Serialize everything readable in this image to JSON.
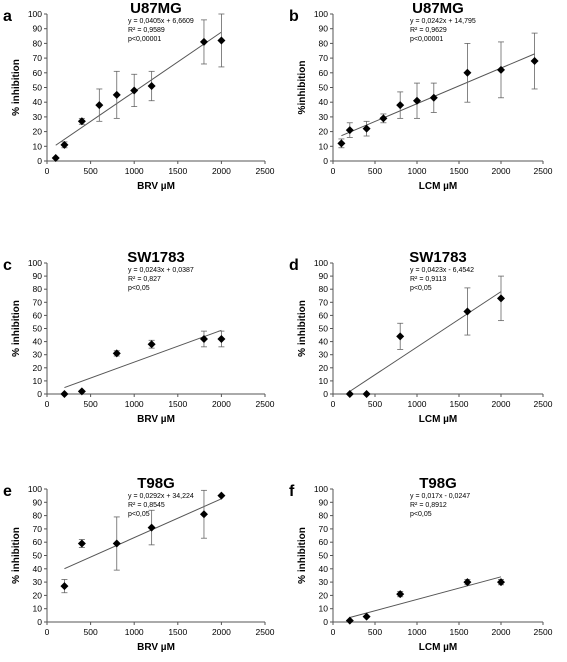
{
  "chart_data": [
    {
      "panel": "a",
      "type": "scatter",
      "title": "U87MG",
      "xlabel": "BRV µM",
      "ylabel": "% inhibition",
      "xlim": [
        0,
        2500
      ],
      "ylim": [
        0,
        100
      ],
      "xticks": [
        0,
        500,
        1000,
        1500,
        2000,
        2500
      ],
      "yticks": [
        0,
        10,
        20,
        30,
        40,
        50,
        60,
        70,
        80,
        90,
        100
      ],
      "annotations": [
        "y = 0,0405x + 6,6609",
        "R² = 0,9589",
        "p<0,00001"
      ],
      "points": [
        {
          "x": 100,
          "y": 2,
          "err": 0
        },
        {
          "x": 200,
          "y": 11,
          "err": 2
        },
        {
          "x": 400,
          "y": 27,
          "err": 2
        },
        {
          "x": 600,
          "y": 38,
          "err": 11
        },
        {
          "x": 800,
          "y": 45,
          "err": 16
        },
        {
          "x": 1000,
          "y": 48,
          "err": 11
        },
        {
          "x": 1200,
          "y": 51,
          "err": 10
        },
        {
          "x": 1800,
          "y": 81,
          "err": 15
        },
        {
          "x": 2000,
          "y": 82,
          "err": 18
        }
      ],
      "trendline": {
        "slope": 0.0405,
        "intercept": 6.6609,
        "x_from": 100,
        "x_to": 2000
      }
    },
    {
      "panel": "b",
      "type": "scatter",
      "title": "U87MG",
      "xlabel": "LCM µM",
      "ylabel": "%inhibition",
      "xlim": [
        0,
        2500
      ],
      "ylim": [
        0,
        100
      ],
      "xticks": [
        0,
        500,
        1000,
        1500,
        2000,
        2500
      ],
      "yticks": [
        0,
        10,
        20,
        30,
        40,
        50,
        60,
        70,
        80,
        90,
        100
      ],
      "annotations": [
        "y = 0,0242x + 14,795",
        "R² = 0,9629",
        "p<0,00001"
      ],
      "points": [
        {
          "x": 100,
          "y": 12,
          "err": 3
        },
        {
          "x": 200,
          "y": 21,
          "err": 5
        },
        {
          "x": 400,
          "y": 22,
          "err": 5
        },
        {
          "x": 600,
          "y": 29,
          "err": 3
        },
        {
          "x": 800,
          "y": 38,
          "err": 9
        },
        {
          "x": 1000,
          "y": 41,
          "err": 12
        },
        {
          "x": 1200,
          "y": 43,
          "err": 10
        },
        {
          "x": 1600,
          "y": 60,
          "err": 20
        },
        {
          "x": 2000,
          "y": 62,
          "err": 19
        },
        {
          "x": 2400,
          "y": 68,
          "err": 19
        }
      ],
      "trendline": {
        "slope": 0.0242,
        "intercept": 14.795,
        "x_from": 100,
        "x_to": 2400
      }
    },
    {
      "panel": "c",
      "type": "scatter",
      "title": "SW1783",
      "xlabel": "BRV µM",
      "ylabel": "% inhibition",
      "xlim": [
        0,
        2500
      ],
      "ylim": [
        0,
        100
      ],
      "xticks": [
        0,
        500,
        1000,
        1500,
        2000,
        2500
      ],
      "yticks": [
        0,
        10,
        20,
        30,
        40,
        50,
        60,
        70,
        80,
        90,
        100
      ],
      "annotations": [
        "y = 0,0243x + 0,0387",
        "R² = 0,827",
        "p<0,05"
      ],
      "points": [
        {
          "x": 200,
          "y": 0,
          "err": 0
        },
        {
          "x": 400,
          "y": 2,
          "err": 0
        },
        {
          "x": 800,
          "y": 31,
          "err": 2
        },
        {
          "x": 1200,
          "y": 38,
          "err": 3
        },
        {
          "x": 1800,
          "y": 42,
          "err": 6
        },
        {
          "x": 2000,
          "y": 42,
          "err": 6
        }
      ],
      "trendline": {
        "slope": 0.0243,
        "intercept": 0.0387,
        "x_from": 200,
        "x_to": 2000
      }
    },
    {
      "panel": "d",
      "type": "scatter",
      "title": "SW1783",
      "xlabel": "LCM µM",
      "ylabel": "% inhibition",
      "xlim": [
        0,
        2500
      ],
      "ylim": [
        0,
        100
      ],
      "xticks": [
        0,
        500,
        1000,
        1500,
        2000,
        2500
      ],
      "yticks": [
        0,
        10,
        20,
        30,
        40,
        50,
        60,
        70,
        80,
        90,
        100
      ],
      "annotations": [
        "y = 0,0423x - 6,4542",
        "R² = 0,9113",
        "p<0,05"
      ],
      "points": [
        {
          "x": 200,
          "y": 0,
          "err": 0
        },
        {
          "x": 400,
          "y": 0,
          "err": 0
        },
        {
          "x": 800,
          "y": 44,
          "err": 10
        },
        {
          "x": 1600,
          "y": 63,
          "err": 18
        },
        {
          "x": 2000,
          "y": 73,
          "err": 17
        }
      ],
      "trendline": {
        "slope": 0.0423,
        "intercept": -6.4542,
        "x_from": 200,
        "x_to": 2000
      }
    },
    {
      "panel": "e",
      "type": "scatter",
      "title": "T98G",
      "xlabel": "BRV µM",
      "ylabel": "% inhibition",
      "xlim": [
        0,
        2500
      ],
      "ylim": [
        0,
        100
      ],
      "xticks": [
        0,
        500,
        1000,
        1500,
        2000,
        2500
      ],
      "yticks": [
        0,
        10,
        20,
        30,
        40,
        50,
        60,
        70,
        80,
        90,
        100
      ],
      "annotations": [
        "y = 0,0292x + 34,224",
        "R² = 0,8545",
        "p<0,05"
      ],
      "points": [
        {
          "x": 200,
          "y": 27,
          "err": 5
        },
        {
          "x": 400,
          "y": 59,
          "err": 3
        },
        {
          "x": 800,
          "y": 59,
          "err": 20
        },
        {
          "x": 1200,
          "y": 71,
          "err": 13
        },
        {
          "x": 1800,
          "y": 81,
          "err": 18
        },
        {
          "x": 2000,
          "y": 95,
          "err": 0
        }
      ],
      "trendline": {
        "slope": 0.0292,
        "intercept": 34.224,
        "x_from": 200,
        "x_to": 2000
      }
    },
    {
      "panel": "f",
      "type": "scatter",
      "title": "T98G",
      "xlabel": "LCM µM",
      "ylabel": "% inhibition",
      "xlim": [
        0,
        2500
      ],
      "ylim": [
        0,
        100
      ],
      "xticks": [
        0,
        500,
        1000,
        1500,
        2000,
        2500
      ],
      "yticks": [
        0,
        10,
        20,
        30,
        40,
        50,
        60,
        70,
        80,
        90,
        100
      ],
      "annotations": [
        "y = 0,017x - 0,0247",
        "R² = 0,8912",
        "p<0,05"
      ],
      "points": [
        {
          "x": 200,
          "y": 1,
          "err": 0
        },
        {
          "x": 400,
          "y": 4,
          "err": 0
        },
        {
          "x": 800,
          "y": 21,
          "err": 2
        },
        {
          "x": 1600,
          "y": 30,
          "err": 2
        },
        {
          "x": 2000,
          "y": 30,
          "err": 2
        }
      ],
      "trendline": {
        "slope": 0.017,
        "intercept": -0.0247,
        "x_from": 200,
        "x_to": 2000
      }
    }
  ]
}
